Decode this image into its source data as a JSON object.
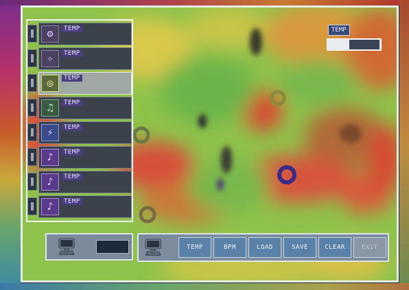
{
  "screen": {
    "title": ""
  },
  "inventory": {
    "items": [
      {
        "icon": "gear-icon",
        "glyph": "⚙",
        "name": "TEMP",
        "qty": ""
      },
      {
        "icon": "crystal-icon",
        "glyph": "✧",
        "name": "TEMP",
        "qty": ""
      },
      {
        "icon": "ring-icon",
        "glyph": "◎",
        "name": "TEMP",
        "qty": ""
      },
      {
        "icon": "music-note-icon",
        "glyph": "♫",
        "name": "TEMP",
        "qty": ""
      },
      {
        "icon": "bolt-icon",
        "glyph": "⚡",
        "name": "TEMP",
        "qty": ""
      },
      {
        "icon": "music-note-icon",
        "glyph": "♪",
        "name": "TEMP",
        "qty": ""
      },
      {
        "icon": "music-note-icon",
        "glyph": "♪",
        "name": "TEMP",
        "qty": ""
      },
      {
        "icon": "music-note-icon",
        "glyph": "♪",
        "name": "TEMP",
        "qty": ""
      }
    ],
    "selected_index": 2
  },
  "status_left": {
    "counter": ""
  },
  "command_bar": {
    "buttons": [
      {
        "label": "TEMP"
      },
      {
        "label": "BPM"
      },
      {
        "label": "LOAD"
      },
      {
        "label": "SAVE"
      },
      {
        "label": "CLEAR"
      },
      {
        "label": "EXIT"
      }
    ]
  },
  "top_right": {
    "label": "TEMP",
    "value": ""
  },
  "colors": {
    "terrain_green": "#8ec24a",
    "terrain_yellow": "#d6c84a",
    "terrain_red": "#d8452e",
    "panel_slot": "#3c424c",
    "button": "#5a82a8"
  }
}
